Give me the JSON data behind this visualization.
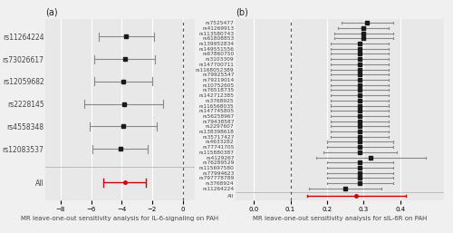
{
  "panel_a": {
    "title": "(a)",
    "xlabel": "MR leave-one-out sensitivity analysis for IL-6-signaling on PAH",
    "snps": [
      "rs11264224",
      "rs73026617",
      "rs12059682",
      "rs2228145",
      "rs4558348",
      "rs12083537"
    ],
    "betas": [
      -3.7,
      -3.8,
      -3.9,
      -3.85,
      -3.9,
      -4.1
    ],
    "se": [
      1.8,
      2.0,
      1.9,
      2.6,
      2.2,
      1.8
    ],
    "all_beta": -3.8,
    "all_se": 1.4,
    "vline": 0,
    "xlim": [
      -9.0,
      0.8
    ],
    "xticks": [
      -8,
      -6,
      -4,
      -2,
      0
    ]
  },
  "panel_b": {
    "title": "(b)",
    "xlabel": "MR leave-one-out sensitivity analysis for sIL-6R on PAH",
    "snps": [
      "rs7525477",
      "rs41269913",
      "rs113580743",
      "rs61808853",
      "rs139952834",
      "rs149551556",
      "rs67860750",
      "rs3103309",
      "rs147700711",
      "rs1168052389",
      "rs79925547",
      "rs79219014",
      "rs10752605",
      "rs76518735",
      "rs142712385",
      "rs3768925",
      "rs116568035",
      "rs147745805",
      "rs56258967",
      "rs79438587",
      "rs2297607",
      "rs138398618",
      "rs35717427",
      "rs4633282",
      "rs77741705",
      "rs115880387",
      "rs4129267",
      "rs76289529",
      "rs115697580",
      "rs77994623",
      "rs797778789",
      "rs3768924",
      "rs11264224"
    ],
    "betas": [
      0.31,
      0.3,
      0.3,
      0.3,
      0.29,
      0.29,
      0.29,
      0.29,
      0.29,
      0.29,
      0.29,
      0.29,
      0.29,
      0.29,
      0.29,
      0.29,
      0.29,
      0.29,
      0.29,
      0.29,
      0.29,
      0.29,
      0.29,
      0.29,
      0.29,
      0.29,
      0.32,
      0.29,
      0.29,
      0.29,
      0.29,
      0.29,
      0.25
    ],
    "se": [
      0.07,
      0.07,
      0.08,
      0.08,
      0.08,
      0.08,
      0.08,
      0.08,
      0.08,
      0.08,
      0.08,
      0.08,
      0.08,
      0.08,
      0.08,
      0.08,
      0.08,
      0.08,
      0.08,
      0.08,
      0.08,
      0.08,
      0.08,
      0.09,
      0.09,
      0.1,
      0.15,
      0.09,
      0.09,
      0.09,
      0.09,
      0.09,
      0.1
    ],
    "all_beta": 0.28,
    "all_se": 0.135,
    "vline": 0.1,
    "xlim": [
      -0.05,
      0.52
    ],
    "xticks": [
      0.0,
      0.1,
      0.2,
      0.3,
      0.4
    ]
  },
  "dot_color": "#1a1a1a",
  "line_color": "#888888",
  "all_color": "#cc0000",
  "bg_color": "#e8e8e8",
  "grid_color": "#ffffff",
  "label_fontsize_a": 5.5,
  "label_fontsize_b": 4.2,
  "tick_fontsize": 5.0,
  "xlabel_fontsize": 5.0,
  "title_fontsize": 7.0
}
